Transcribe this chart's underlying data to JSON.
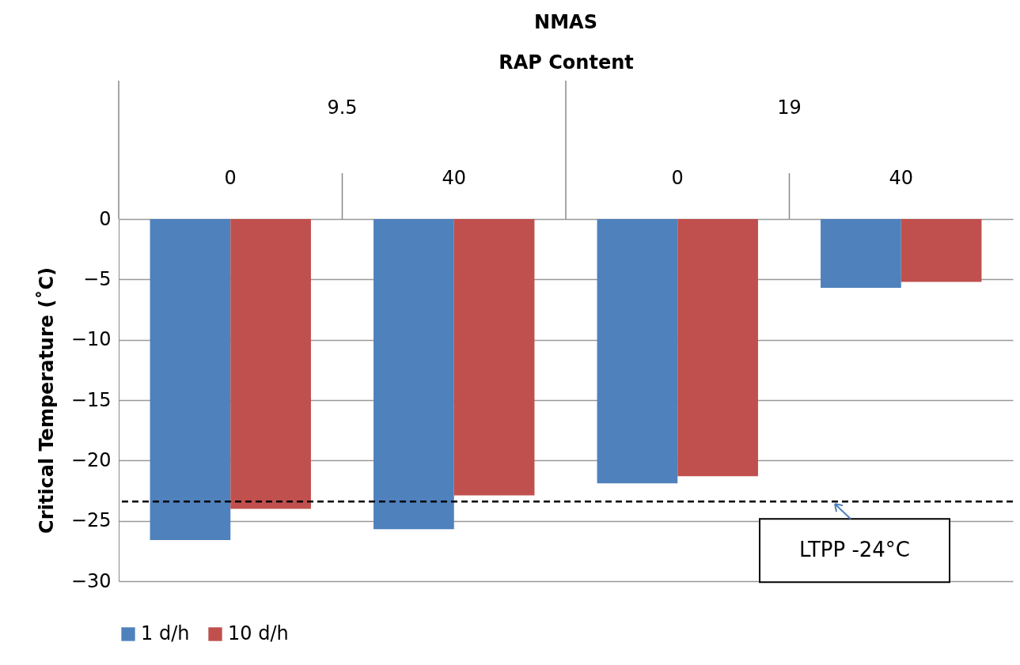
{
  "chart_data": {
    "type": "bar",
    "title": "NMAS",
    "xlabel": "RAP Content",
    "ylabel": "Critical Temperature (˚C)",
    "categories": [
      "0",
      "40",
      "0",
      "40"
    ],
    "annotations": [
      "9.5",
      "19"
    ],
    "series": [
      {
        "name": "1 d/h",
        "color": "#4f81bd",
        "values": [
          -26.6,
          -25.7,
          -21.9,
          -5.7
        ]
      },
      {
        "name": "10 d/h",
        "color": "#c0504d",
        "values": [
          -24.0,
          -22.9,
          -21.3,
          -5.2
        ]
      }
    ],
    "ylim": [
      -30,
      0
    ],
    "yticks": [
      -30,
      -25,
      -20,
      -15,
      -10,
      -5,
      0
    ],
    "grid": "y",
    "legend": "bottom",
    "ref_lines": [
      {
        "axis": "y",
        "value": -23.4,
        "label": "LTPP -24°C",
        "color": "#000000",
        "line_style": "dashed"
      }
    ]
  }
}
